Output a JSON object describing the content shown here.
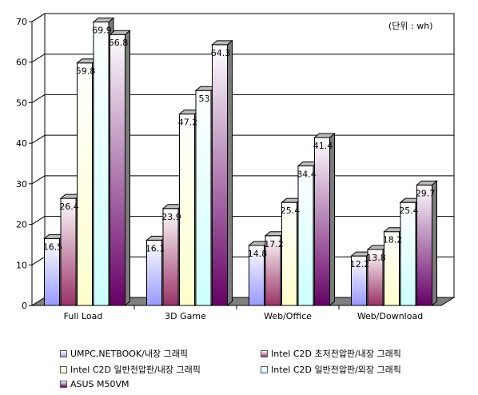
{
  "chart_data": {
    "type": "bar",
    "unit_note": "(단위 : wh)",
    "categories": [
      "Full Load",
      "3D Game",
      "Web/Office",
      "Web/Download"
    ],
    "ylim": [
      0,
      70
    ],
    "yticks": [
      0,
      10,
      20,
      30,
      40,
      50,
      60,
      70
    ],
    "grid": true,
    "legend_position": "bottom",
    "series": [
      {
        "name": "UMPC,NETBOOK/내장 그래픽",
        "values": [
          16.5,
          16.1,
          14.8,
          12.2
        ],
        "labels": [
          "16.5",
          "16.1",
          "14.8",
          "12.2"
        ],
        "color": "#9999ff",
        "light": "#ffffff"
      },
      {
        "name": "Intel C2D 초저전압판/내장 그래픽",
        "values": [
          26.4,
          23.9,
          17.2,
          13.8
        ],
        "labels": [
          "26.4",
          "23.9",
          "17.2",
          "13.8"
        ],
        "color": "#993366",
        "light": "#ffffff"
      },
      {
        "name": "Intel C2D 일반전압판/내장 그래픽",
        "values": [
          59.8,
          47.2,
          25.4,
          18.2
        ],
        "labels": [
          "59.8",
          "47.2",
          "25.4",
          "18.2"
        ],
        "color": "#ffffcc",
        "light": "#ffffff"
      },
      {
        "name": "Intel C2D 일반전압판/외장 그래픽",
        "values": [
          69.9,
          53,
          34.4,
          25.4
        ],
        "labels": [
          "69.9",
          "53",
          "34.4",
          "25.4"
        ],
        "color": "#ccffff",
        "light": "#ffffff"
      },
      {
        "name": "ASUS M50VM",
        "values": [
          66.8,
          64.3,
          41.4,
          29.7
        ],
        "labels": [
          "66.8",
          "64.3",
          "41.4",
          "29.7"
        ],
        "color": "#660066",
        "light": "#ffffff"
      }
    ]
  }
}
